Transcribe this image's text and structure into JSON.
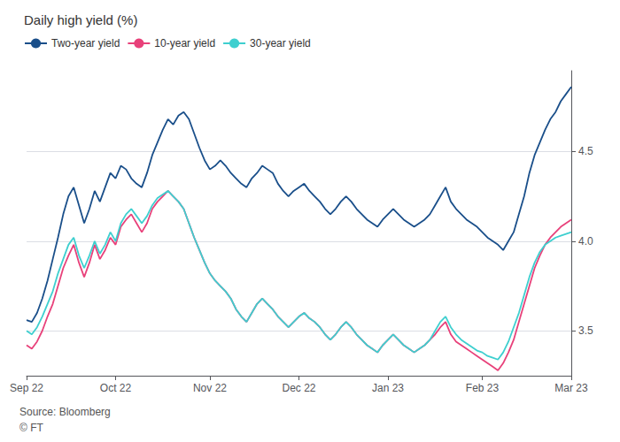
{
  "chart_data": {
    "type": "line",
    "title": "Daily high yield (%)",
    "annotations": [
      "Source: Bloomberg",
      "© FT"
    ],
    "categories": [
      "Sep 22",
      null,
      null,
      null,
      null,
      null,
      null,
      null,
      null,
      null,
      null,
      null,
      null,
      null,
      null,
      null,
      null,
      "Oct 22",
      null,
      null,
      null,
      null,
      null,
      null,
      null,
      null,
      null,
      null,
      null,
      null,
      null,
      null,
      null,
      null,
      null,
      "Nov 22",
      null,
      null,
      null,
      null,
      null,
      null,
      null,
      null,
      null,
      null,
      null,
      null,
      null,
      null,
      null,
      null,
      "Dec 22",
      null,
      null,
      null,
      null,
      null,
      null,
      null,
      null,
      null,
      null,
      null,
      null,
      null,
      null,
      null,
      null,
      "Jan 23",
      null,
      null,
      null,
      null,
      null,
      null,
      null,
      null,
      null,
      null,
      null,
      null,
      null,
      null,
      null,
      null,
      null,
      "Feb 23",
      null,
      null,
      null,
      null,
      null,
      null,
      null,
      null,
      null,
      null,
      null,
      null,
      null,
      null,
      null,
      null,
      "Mar 23"
    ],
    "ylim": [
      3.25,
      4.95
    ],
    "yticks": [
      3.5,
      {
        "value": 4.0,
        "label": "4.0"
      },
      4.5
    ],
    "grid": true,
    "legend": "top-left",
    "series": [
      {
        "name": "Two-year yield",
        "color": "#1a4f8a",
        "values": [
          3.56,
          3.55,
          3.6,
          3.68,
          3.78,
          3.9,
          4.02,
          4.15,
          4.25,
          4.3,
          4.2,
          4.1,
          4.18,
          4.28,
          4.22,
          4.3,
          4.38,
          4.35,
          4.42,
          4.4,
          4.35,
          4.32,
          4.3,
          4.38,
          4.48,
          4.55,
          4.62,
          4.68,
          4.65,
          4.7,
          4.72,
          4.68,
          4.6,
          4.52,
          4.45,
          4.4,
          4.42,
          4.45,
          4.42,
          4.38,
          4.35,
          4.32,
          4.3,
          4.35,
          4.38,
          4.42,
          4.4,
          4.38,
          4.32,
          4.28,
          4.25,
          4.28,
          4.3,
          4.32,
          4.28,
          4.25,
          4.22,
          4.18,
          4.15,
          4.18,
          4.22,
          4.25,
          4.22,
          4.18,
          4.15,
          4.12,
          4.1,
          4.08,
          4.12,
          4.15,
          4.18,
          4.15,
          4.12,
          4.1,
          4.08,
          4.1,
          4.12,
          4.15,
          4.2,
          4.25,
          4.3,
          4.22,
          4.18,
          4.15,
          4.12,
          4.1,
          4.08,
          4.05,
          4.02,
          4.0,
          3.98,
          3.95,
          4.0,
          4.05,
          4.15,
          4.25,
          4.38,
          4.48,
          4.55,
          4.62,
          4.68,
          4.72,
          4.78,
          4.82,
          4.86
        ]
      },
      {
        "name": "10-year yield",
        "color": "#e8417a",
        "values": [
          3.42,
          3.4,
          3.44,
          3.5,
          3.58,
          3.65,
          3.75,
          3.85,
          3.92,
          3.98,
          3.88,
          3.8,
          3.88,
          3.98,
          3.9,
          3.95,
          4.02,
          3.98,
          4.08,
          4.12,
          4.15,
          4.1,
          4.05,
          4.1,
          4.18,
          4.22,
          4.25,
          4.28,
          4.25,
          4.22,
          4.18,
          4.1,
          4.02,
          3.95,
          3.88,
          3.82,
          3.78,
          3.75,
          3.72,
          3.68,
          3.62,
          3.58,
          3.55,
          3.6,
          3.65,
          3.68,
          3.65,
          3.62,
          3.58,
          3.55,
          3.52,
          3.55,
          3.58,
          3.6,
          3.57,
          3.55,
          3.52,
          3.48,
          3.45,
          3.48,
          3.52,
          3.55,
          3.52,
          3.48,
          3.45,
          3.42,
          3.4,
          3.38,
          3.42,
          3.45,
          3.48,
          3.45,
          3.42,
          3.4,
          3.38,
          3.4,
          3.42,
          3.45,
          3.48,
          3.52,
          3.55,
          3.48,
          3.44,
          3.42,
          3.4,
          3.38,
          3.36,
          3.34,
          3.32,
          3.3,
          3.28,
          3.32,
          3.38,
          3.45,
          3.55,
          3.65,
          3.75,
          3.85,
          3.92,
          3.98,
          4.02,
          4.05,
          4.08,
          4.1,
          4.12
        ]
      },
      {
        "name": "30-year yield",
        "color": "#3ecfcf",
        "values": [
          3.5,
          3.48,
          3.52,
          3.58,
          3.65,
          3.72,
          3.82,
          3.9,
          3.98,
          4.02,
          3.92,
          3.85,
          3.92,
          4.0,
          3.93,
          3.98,
          4.05,
          4.0,
          4.1,
          4.15,
          4.18,
          4.14,
          4.1,
          4.14,
          4.2,
          4.24,
          4.26,
          4.28,
          4.25,
          4.22,
          4.18,
          4.1,
          4.02,
          3.95,
          3.88,
          3.82,
          3.78,
          3.75,
          3.72,
          3.68,
          3.62,
          3.58,
          3.55,
          3.6,
          3.65,
          3.68,
          3.65,
          3.62,
          3.58,
          3.55,
          3.52,
          3.55,
          3.58,
          3.6,
          3.57,
          3.55,
          3.52,
          3.48,
          3.45,
          3.48,
          3.52,
          3.55,
          3.52,
          3.48,
          3.45,
          3.42,
          3.4,
          3.38,
          3.42,
          3.45,
          3.48,
          3.45,
          3.42,
          3.4,
          3.38,
          3.4,
          3.42,
          3.45,
          3.5,
          3.55,
          3.58,
          3.52,
          3.48,
          3.45,
          3.43,
          3.41,
          3.39,
          3.38,
          3.36,
          3.35,
          3.34,
          3.38,
          3.44,
          3.52,
          3.6,
          3.7,
          3.8,
          3.88,
          3.94,
          3.98,
          4.0,
          4.02,
          4.03,
          4.04,
          4.05
        ]
      }
    ]
  }
}
